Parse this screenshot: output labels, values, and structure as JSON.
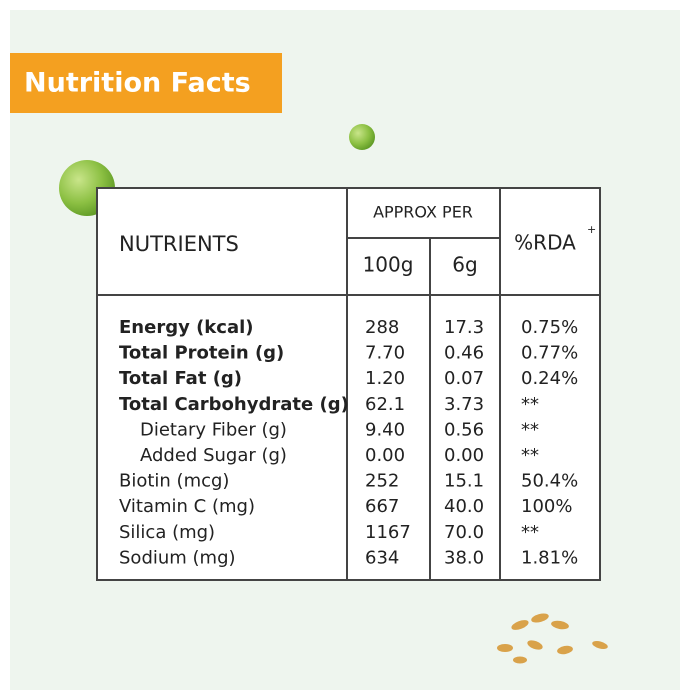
{
  "header": {
    "title": "Nutrition Facts"
  },
  "table": {
    "headers": {
      "nutrients": "NUTRIENTS",
      "approx_per": "APPROX PER",
      "per_100g": "100g",
      "per_6g": "6g",
      "rda": "%RDA",
      "rda_mark": "+"
    },
    "rows": [
      [
        "Energy (kcal)",
        "288",
        "17.3",
        "0.75%"
      ],
      [
        "Total Protein (g)",
        "7.70",
        "0.46",
        "0.77%"
      ],
      [
        "Total Fat (g)",
        "1.20",
        "0.07",
        "0.24%"
      ],
      [
        "Total Carbohydrate (g)",
        "62.1",
        "3.73",
        "**"
      ],
      [
        "Dietary Fiber (g)",
        "9.40",
        "0.56",
        "**"
      ],
      [
        "Added Sugar (g)",
        "0.00",
        "0.00",
        "**"
      ],
      [
        "Biotin (mcg)",
        "252",
        "15.1",
        "50.4%"
      ],
      [
        "Vitamin C (mg)",
        "667",
        "40.0",
        "100%"
      ],
      [
        "Silica (mg)",
        "1167",
        "70.0",
        "**"
      ],
      [
        "Sodium (mg)",
        "634",
        "38.0",
        "1.81%"
      ]
    ]
  }
}
